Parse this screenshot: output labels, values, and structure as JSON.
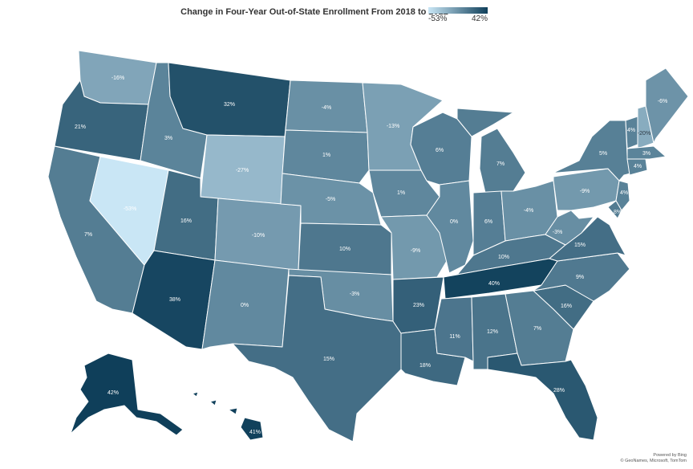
{
  "title": "Change in Four-Year Out-of-State Enrollment From 2018 to 2022",
  "legend": {
    "min_label": "-53%",
    "max_label": "42%",
    "min_value": -53,
    "max_value": 42,
    "color_low": "#c9e6f5",
    "color_high": "#0f3f5a"
  },
  "credit": {
    "line1": "Powered by Bing",
    "line2": "© GeoNames, Microsoft, TomTom"
  },
  "states": {
    "WA": "-16%",
    "OR": "21%",
    "CA": "7%",
    "NV": "-53%",
    "ID": "3%",
    "MT": "32%",
    "WY": "-27%",
    "UT": "16%",
    "AZ": "38%",
    "CO": "-10%",
    "NM": "0%",
    "ND": "-4%",
    "SD": "1%",
    "NE": "-5%",
    "KS": "10%",
    "OK": "-3%",
    "TX": "15%",
    "MN": "-13%",
    "IA": "1%",
    "MO": "-9%",
    "AR": "23%",
    "LA": "18%",
    "WI": "6%",
    "IL": "0%",
    "MI": "7%",
    "IN": "6%",
    "OH": "-4%",
    "KY": "10%",
    "TN": "40%",
    "MS": "11%",
    "AL": "12%",
    "GA": "7%",
    "FL": "28%",
    "SC": "16%",
    "NC": "9%",
    "VA": "15%",
    "WV": "-3%",
    "PA": "-9%",
    "NY": "5%",
    "VT": "4%",
    "NH": "-20%",
    "ME": "-6%",
    "MA": "3%",
    "CT": "4%",
    "NJ": "4%",
    "DE": "8%",
    "AK": "42%",
    "HI": "41%"
  }
}
